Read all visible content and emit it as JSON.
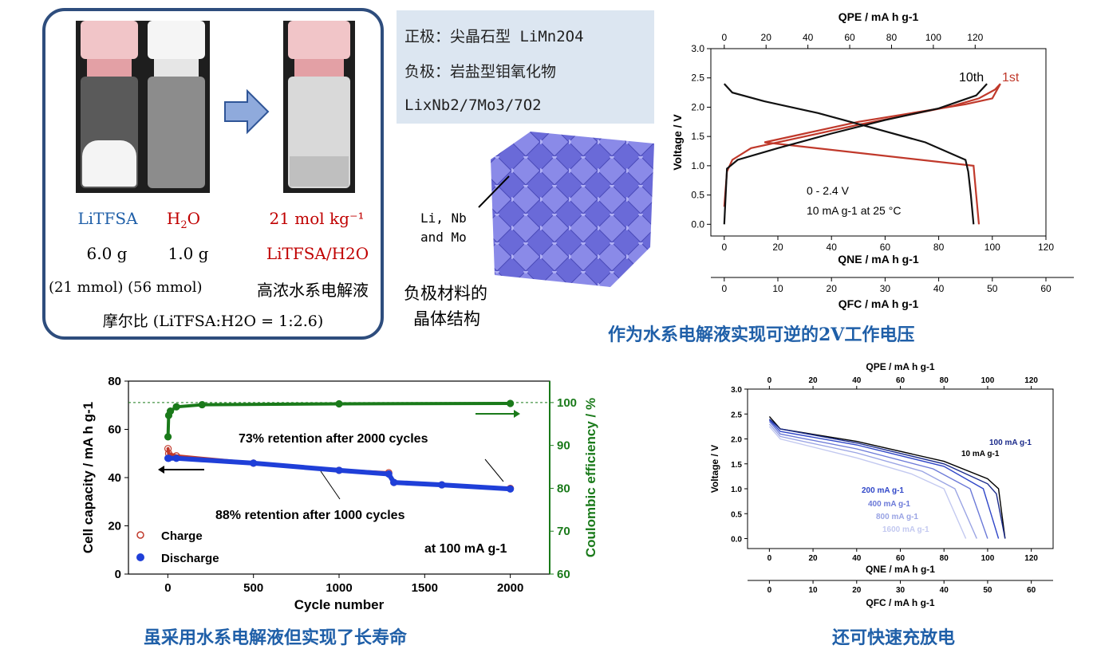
{
  "vials": {
    "labels": [
      "LiTFSA",
      "H2O",
      "21 mol kg⁻¹"
    ],
    "h2o_sub": "2",
    "masses": [
      "6.0 g",
      "1.0 g"
    ],
    "product": "LiTFSA/H2O",
    "moles": "(21 mmol) (56 mmol)",
    "electrolyte": "高浓水系电解液",
    "molar_ratio": "摩尔比 (LiTFSA:H2O = 1:2.6)"
  },
  "materials": {
    "positive": "正极：尖晶石型 LiMn2O4",
    "negative": "负极：岩盐型钼氧化物",
    "formula": "LixNb2/7Mo3/7O2",
    "crystal_label_1": "Li, Nb",
    "crystal_label_2": "and Mo",
    "crystal_caption_1": "负极材料的",
    "crystal_caption_2": "晶体结构"
  },
  "captions": {
    "top_right": "作为水系电解液实现可逆的2V工作电压",
    "bottom_left": "虽采用水系电解液但实现了长寿命",
    "bottom_right": "还可快速充放电"
  },
  "colors": {
    "accent_blue": "#1f5fa8",
    "panel_border": "#2e4d7d",
    "info_bg": "#dce6f1",
    "charge_red": "#c0392b",
    "discharge_blue": "#1f3fd8",
    "ce_green": "#1a7a1a"
  },
  "chart_data": [
    {
      "type": "line",
      "title": "",
      "top_axis_label": "QPE / mA h g-1",
      "top_ticks": [
        "0",
        "20",
        "40",
        "60",
        "80",
        "100",
        "120"
      ],
      "xlabel": "QNE / mA h g-1",
      "x_ticks": [
        "0",
        "20",
        "40",
        "60",
        "80",
        "100",
        "120"
      ],
      "second_bottom_axis_label": "QFC / mA h g-1",
      "second_bottom_ticks": [
        "0",
        "10",
        "20",
        "30",
        "40",
        "50",
        "60"
      ],
      "ylabel": "Voltage / V",
      "y_ticks": [
        "0.0",
        "0.5",
        "1.0",
        "1.5",
        "2.0",
        "2.5",
        "3.0"
      ],
      "xlim": [
        -5,
        120
      ],
      "ylim": [
        -0.2,
        3.0
      ],
      "annotations": [
        "0 - 2.4 V",
        "10 mA g-1 at 25 °C",
        "10th",
        "1st"
      ],
      "series": [
        {
          "name": "1st",
          "color": "#c0392b",
          "charge": [
            [
              0,
              0.3
            ],
            [
              1,
              0.9
            ],
            [
              3,
              1.1
            ],
            [
              10,
              1.3
            ],
            [
              30,
              1.5
            ],
            [
              50,
              1.7
            ],
            [
              70,
              1.88
            ],
            [
              85,
              2.02
            ],
            [
              95,
              2.15
            ],
            [
              101,
              2.3
            ],
            [
              103,
              2.4
            ]
          ],
          "discharge": [
            [
              103,
              2.4
            ],
            [
              100,
              2.15
            ],
            [
              90,
              2.05
            ],
            [
              70,
              1.9
            ],
            [
              50,
              1.75
            ],
            [
              30,
              1.55
            ],
            [
              15,
              1.4
            ],
            [
              93,
              1.0
            ],
            [
              94,
              0.5
            ],
            [
              95,
              0.0
            ]
          ]
        },
        {
          "name": "10th",
          "color": "#111111",
          "charge": [
            [
              0,
              0.0
            ],
            [
              1,
              0.95
            ],
            [
              5,
              1.1
            ],
            [
              20,
              1.3
            ],
            [
              40,
              1.55
            ],
            [
              60,
              1.78
            ],
            [
              80,
              1.98
            ],
            [
              94,
              2.2
            ],
            [
              98,
              2.4
            ]
          ],
          "discharge": [
            [
              0,
              2.4
            ],
            [
              3,
              2.25
            ],
            [
              15,
              2.1
            ],
            [
              35,
              1.9
            ],
            [
              55,
              1.65
            ],
            [
              75,
              1.4
            ],
            [
              90,
              1.1
            ],
            [
              91,
              0.9
            ],
            [
              92,
              0.5
            ],
            [
              93,
              0.0
            ]
          ]
        }
      ]
    },
    {
      "type": "scatter",
      "title": "",
      "xlabel": "Cycle number",
      "x_ticks": [
        "0",
        "500",
        "1000",
        "1500",
        "2000"
      ],
      "ylabel": "Cell capacity / mA h g-1",
      "y_ticks": [
        "0",
        "20",
        "40",
        "60",
        "80"
      ],
      "y2label": "Coulombic efficiency / %",
      "y2_ticks": [
        "60",
        "70",
        "80",
        "90",
        "100"
      ],
      "xlim": [
        -230,
        2230
      ],
      "ylim": [
        0,
        80
      ],
      "y2lim": [
        60,
        105
      ],
      "legend": [
        "Charge",
        "Discharge"
      ],
      "annotations": [
        "73% retention after 2000 cycles",
        "88% retention after 1000 cycles",
        "at 100 mA g-1"
      ],
      "series": [
        {
          "name": "Charge",
          "color": "#c0392b",
          "points": [
            [
              1,
              52
            ],
            [
              5,
              50
            ],
            [
              50,
              49
            ],
            [
              500,
              46
            ],
            [
              1000,
              43
            ],
            [
              1290,
              42
            ],
            [
              1320,
              38
            ],
            [
              1600,
              37
            ],
            [
              2000,
              35.5
            ]
          ]
        },
        {
          "name": "Discharge",
          "color": "#1f3fd8",
          "points": [
            [
              1,
              48
            ],
            [
              5,
              48
            ],
            [
              50,
              48
            ],
            [
              500,
              46
            ],
            [
              1000,
              43
            ],
            [
              1290,
              41.5
            ],
            [
              1320,
              38
            ],
            [
              1600,
              37
            ],
            [
              2000,
              35.3
            ]
          ]
        },
        {
          "name": "Coulombic efficiency",
          "color": "#1a7a1a",
          "points": [
            [
              1,
              92
            ],
            [
              5,
              97
            ],
            [
              15,
              98
            ],
            [
              50,
              99
            ],
            [
              200,
              99.5
            ],
            [
              1000,
              99.7
            ],
            [
              2000,
              99.8
            ]
          ]
        }
      ]
    },
    {
      "type": "line",
      "title": "",
      "top_axis_label": "QPE / mA h g-1",
      "top_ticks": [
        "0",
        "20",
        "40",
        "60",
        "80",
        "100",
        "120"
      ],
      "xlabel": "QNE / mA h g-1",
      "x_ticks": [
        "0",
        "20",
        "40",
        "60",
        "80",
        "100",
        "120"
      ],
      "second_bottom_axis_label": "QFC / mA h g-1",
      "second_bottom_ticks": [
        "0",
        "10",
        "20",
        "30",
        "40",
        "50",
        "60"
      ],
      "ylabel": "Voltage / V",
      "y_ticks": [
        "0.0",
        "0.5",
        "1.0",
        "1.5",
        "2.0",
        "2.5",
        "3.0"
      ],
      "xlim": [
        -10,
        130
      ],
      "ylim": [
        -0.2,
        3.0
      ],
      "series": [
        {
          "name": "10 mA g-1",
          "color": "#000000",
          "points": [
            [
              0,
              2.45
            ],
            [
              5,
              2.2
            ],
            [
              40,
              1.95
            ],
            [
              80,
              1.55
            ],
            [
              100,
              1.2
            ],
            [
              105,
              1.0
            ],
            [
              108,
              0.0
            ]
          ]
        },
        {
          "name": "100 mA g-1",
          "color": "#1a2a8a",
          "points": [
            [
              0,
              2.4
            ],
            [
              5,
              2.2
            ],
            [
              40,
              1.92
            ],
            [
              80,
              1.5
            ],
            [
              100,
              1.1
            ],
            [
              104,
              0.9
            ],
            [
              108,
              0.0
            ]
          ]
        },
        {
          "name": "200 mA g-1",
          "color": "#2f46c8",
          "points": [
            [
              0,
              2.38
            ],
            [
              5,
              2.15
            ],
            [
              40,
              1.88
            ],
            [
              80,
              1.45
            ],
            [
              98,
              1.0
            ],
            [
              105,
              0.0
            ]
          ]
        },
        {
          "name": "400 mA g-1",
          "color": "#6c7ad8",
          "points": [
            [
              0,
              2.35
            ],
            [
              5,
              2.1
            ],
            [
              40,
              1.8
            ],
            [
              75,
              1.4
            ],
            [
              92,
              1.0
            ],
            [
              100,
              0.0
            ]
          ]
        },
        {
          "name": "800 mA g-1",
          "color": "#9aa4e4",
          "points": [
            [
              0,
              2.3
            ],
            [
              5,
              2.05
            ],
            [
              40,
              1.72
            ],
            [
              70,
              1.35
            ],
            [
              85,
              1.0
            ],
            [
              95,
              0.0
            ]
          ]
        },
        {
          "name": "1600 mA g-1",
          "color": "#c3c9f0",
          "points": [
            [
              0,
              2.25
            ],
            [
              5,
              2.0
            ],
            [
              40,
              1.62
            ],
            [
              65,
              1.3
            ],
            [
              80,
              1.0
            ],
            [
              90,
              0.0
            ]
          ]
        }
      ]
    }
  ]
}
